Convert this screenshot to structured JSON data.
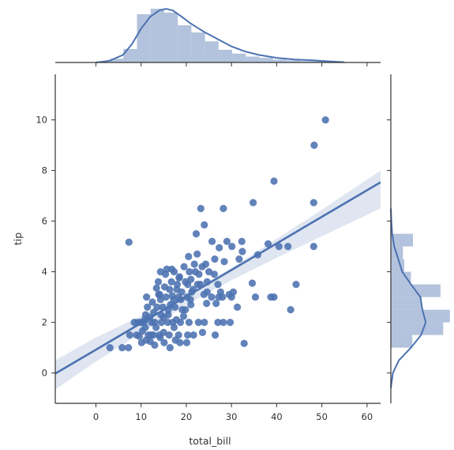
{
  "chart_data": {
    "type": "scatter",
    "subtype": "jointplot-regression",
    "xlabel": "total_bill",
    "ylabel": "tip",
    "xlim": [
      -9,
      63
    ],
    "ylim": [
      -1.2,
      11.8
    ],
    "xticks": [
      0,
      10,
      20,
      30,
      40,
      50,
      60
    ],
    "yticks": [
      0,
      2,
      4,
      6,
      8,
      10
    ],
    "grid": false,
    "colors": {
      "primary": "#4c72b0",
      "hist": "#b3c3dd",
      "band": "#dbe3ef",
      "axis": "#333333"
    },
    "regression": {
      "intercept": 0.92,
      "slope": 0.105
    },
    "confidence_band": {
      "x": [
        -9,
        0,
        10,
        20,
        30,
        40,
        50,
        63
      ],
      "lower": [
        -0.65,
        0.45,
        1.57,
        2.7,
        3.67,
        4.55,
        5.4,
        6.5
      ],
      "upper": [
        0.5,
        1.4,
        2.25,
        3.12,
        4.15,
        5.3,
        6.45,
        8.0
      ]
    },
    "points": [
      [
        50.8,
        10.0
      ],
      [
        48.3,
        9.0
      ],
      [
        39.4,
        7.58
      ],
      [
        48.2,
        6.73
      ],
      [
        34.8,
        6.73
      ],
      [
        23.2,
        6.5
      ],
      [
        28.2,
        6.5
      ],
      [
        24.0,
        5.85
      ],
      [
        22.2,
        5.5
      ],
      [
        7.3,
        5.17
      ],
      [
        32.3,
        5.2
      ],
      [
        25.7,
        5.2
      ],
      [
        30.1,
        5.0
      ],
      [
        38.1,
        5.1
      ],
      [
        40.5,
        5.0
      ],
      [
        42.5,
        5.0
      ],
      [
        48.2,
        5.0
      ],
      [
        32.4,
        4.8
      ],
      [
        35.8,
        4.67
      ],
      [
        27.3,
        4.95
      ],
      [
        26.3,
        4.5
      ],
      [
        22.4,
        4.7
      ],
      [
        29.0,
        5.2
      ],
      [
        20.5,
        4.6
      ],
      [
        24.3,
        4.3
      ],
      [
        28.4,
        4.4
      ],
      [
        31.7,
        4.5
      ],
      [
        14.3,
        4.0
      ],
      [
        17.3,
        4.0
      ],
      [
        16.8,
        4.1
      ],
      [
        19.5,
        4.2
      ],
      [
        21.8,
        4.3
      ],
      [
        15.4,
        3.9
      ],
      [
        18.4,
        3.76
      ],
      [
        22.8,
        3.9
      ],
      [
        25.0,
        4.0
      ],
      [
        26.2,
        3.9
      ],
      [
        34.6,
        3.55
      ],
      [
        44.3,
        3.5
      ],
      [
        30.4,
        3.2
      ],
      [
        20.3,
        3.5
      ],
      [
        23.1,
        3.5
      ],
      [
        13.8,
        3.6
      ],
      [
        11.2,
        3.0
      ],
      [
        15.5,
        3.0
      ],
      [
        18.3,
        3.0
      ],
      [
        20.2,
        3.0
      ],
      [
        25.6,
        3.0
      ],
      [
        28.0,
        3.0
      ],
      [
        38.7,
        3.0
      ],
      [
        39.4,
        3.0
      ],
      [
        43.1,
        2.5
      ],
      [
        35.3,
        3.0
      ],
      [
        24.6,
        3.2
      ],
      [
        16.3,
        3.3
      ],
      [
        17.9,
        3.3
      ],
      [
        21.2,
        3.2
      ],
      [
        27.2,
        3.0
      ],
      [
        13.4,
        3.35
      ],
      [
        14.1,
        3.1
      ],
      [
        16.9,
        3.05
      ],
      [
        19.8,
        2.5
      ],
      [
        12.5,
        2.8
      ],
      [
        14.8,
        2.6
      ],
      [
        16.0,
        2.5
      ],
      [
        17.5,
        2.6
      ],
      [
        19.1,
        2.5
      ],
      [
        21.0,
        2.7
      ],
      [
        24.5,
        2.75
      ],
      [
        26.6,
        2.75
      ],
      [
        31.3,
        2.6
      ],
      [
        10.6,
        2.0
      ],
      [
        11.9,
        2.2
      ],
      [
        13.0,
        2.0
      ],
      [
        14.5,
        2.0
      ],
      [
        15.9,
        2.0
      ],
      [
        17.0,
        2.0
      ],
      [
        18.7,
        2.0
      ],
      [
        20.6,
        2.0
      ],
      [
        22.7,
        2.0
      ],
      [
        24.0,
        2.0
      ],
      [
        27.0,
        2.0
      ],
      [
        28.2,
        2.0
      ],
      [
        29.7,
        2.0
      ],
      [
        10.3,
        1.66
      ],
      [
        11.6,
        1.5
      ],
      [
        12.7,
        1.5
      ],
      [
        13.3,
        1.8
      ],
      [
        14.0,
        1.5
      ],
      [
        15.0,
        1.6
      ],
      [
        16.2,
        1.5
      ],
      [
        17.3,
        1.8
      ],
      [
        18.3,
        1.5
      ],
      [
        20.3,
        1.5
      ],
      [
        9.0,
        1.5
      ],
      [
        8.5,
        2.0
      ],
      [
        9.6,
        1.45
      ],
      [
        10.1,
        1.2
      ],
      [
        11.1,
        1.3
      ],
      [
        12.0,
        1.25
      ],
      [
        13.0,
        1.1
      ],
      [
        14.2,
        1.4
      ],
      [
        15.1,
        1.2
      ],
      [
        16.4,
        1.0
      ],
      [
        17.6,
        1.3
      ],
      [
        18.6,
        1.2
      ],
      [
        20.1,
        1.2
      ],
      [
        21.6,
        1.5
      ],
      [
        23.6,
        1.6
      ],
      [
        26.4,
        1.5
      ],
      [
        32.8,
        1.17
      ],
      [
        3.1,
        1.0
      ],
      [
        5.8,
        1.0
      ],
      [
        7.2,
        1.0
      ],
      [
        7.5,
        1.5
      ],
      [
        10.9,
        1.8
      ],
      [
        12.2,
        1.5
      ],
      [
        14.4,
        2.3
      ],
      [
        16.0,
        2.3
      ],
      [
        19.4,
        2.24
      ],
      [
        12.8,
        2.4
      ],
      [
        11.4,
        2.6
      ],
      [
        9.9,
        2.0
      ],
      [
        15.2,
        3.4
      ],
      [
        16.7,
        3.6
      ],
      [
        18.0,
        3.5
      ],
      [
        19.8,
        3.6
      ],
      [
        21.5,
        3.3
      ],
      [
        23.9,
        3.1
      ],
      [
        18.8,
        2.9
      ],
      [
        20.9,
        2.9
      ],
      [
        13.5,
        2.6
      ],
      [
        16.5,
        2.7
      ],
      [
        15.0,
        2.2
      ],
      [
        17.8,
        2.1
      ],
      [
        12.3,
        2.0
      ],
      [
        11.0,
        2.3
      ],
      [
        14.3,
        2.9
      ],
      [
        17.2,
        2.9
      ],
      [
        19.0,
        3.2
      ],
      [
        21.0,
        3.7
      ],
      [
        22.5,
        3.5
      ],
      [
        24.6,
        3.6
      ],
      [
        27.6,
        3.2
      ],
      [
        30.0,
        3.0
      ],
      [
        13.9,
        3.1
      ],
      [
        10.8,
        2.1
      ],
      [
        9.3,
        2.0
      ],
      [
        18.5,
        3.8
      ],
      [
        20.7,
        4.0
      ],
      [
        15.7,
        4.1
      ],
      [
        22.0,
        4.0
      ],
      [
        23.5,
        4.2
      ],
      [
        27.0,
        3.5
      ],
      [
        29.5,
        3.1
      ]
    ],
    "x_hist": {
      "edges": [
        3.07,
        6.08,
        9.09,
        12.1,
        15.11,
        18.12,
        21.13,
        24.14,
        27.15,
        30.16,
        33.17,
        36.18,
        39.19,
        42.2,
        45.21,
        48.22,
        51.23
      ],
      "density": [
        0.0045,
        0.016,
        0.057,
        0.0635,
        0.059,
        0.044,
        0.0355,
        0.025,
        0.015,
        0.0105,
        0.007,
        0.0055,
        0.0035,
        0.0025,
        0.0015,
        0.002
      ]
    },
    "x_kde": {
      "x": [
        0,
        3,
        6,
        8,
        10,
        12,
        14,
        15.5,
        17,
        19,
        21,
        24,
        27,
        30,
        33,
        36,
        40,
        44,
        48,
        52,
        55
      ],
      "density": [
        0.0,
        0.002,
        0.009,
        0.022,
        0.04,
        0.054,
        0.0615,
        0.0635,
        0.0615,
        0.054,
        0.046,
        0.036,
        0.0275,
        0.019,
        0.013,
        0.009,
        0.0055,
        0.0035,
        0.0025,
        0.0012,
        0.0004
      ]
    },
    "y_hist": {
      "edges": [
        1.0,
        1.5,
        2.0,
        2.5,
        3.0,
        3.5,
        4.0,
        4.5,
        5.0,
        5.5
      ],
      "density": [
        0.32,
        0.78,
        0.88,
        0.46,
        0.74,
        0.3,
        0.2,
        0.18,
        0.33
      ]
    },
    "y_kde": {
      "y": [
        -0.6,
        0.0,
        0.5,
        1.0,
        1.5,
        2.0,
        2.5,
        3.0,
        3.5,
        4.0,
        4.5,
        5.0,
        5.5,
        6.0,
        6.5
      ],
      "density": [
        0.0,
        0.03,
        0.12,
        0.3,
        0.45,
        0.52,
        0.47,
        0.44,
        0.3,
        0.17,
        0.11,
        0.05,
        0.02,
        0.008,
        0.0
      ]
    }
  }
}
